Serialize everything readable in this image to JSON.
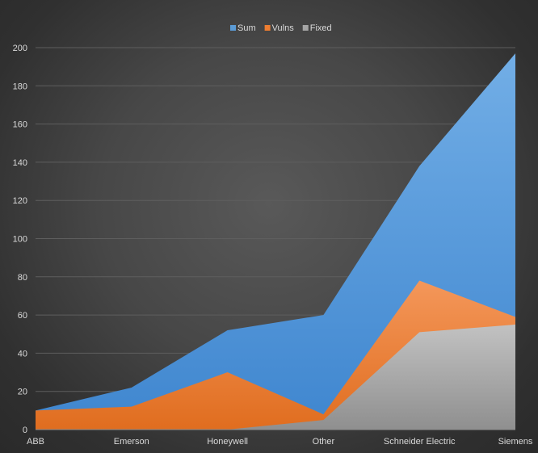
{
  "chart_data": {
    "type": "area",
    "categories": [
      "ABB",
      "Emerson",
      "Honeywell",
      "Other",
      "Schneider Electric",
      "Siemens"
    ],
    "series": [
      {
        "name": "Sum",
        "values": [
          10,
          22,
          52,
          60,
          138,
          197
        ],
        "color": "#5b9bd5"
      },
      {
        "name": "Vulns",
        "values": [
          10,
          12,
          30,
          8,
          78,
          59
        ],
        "color": "#ed7d31"
      },
      {
        "name": "Fixed",
        "values": [
          0,
          0,
          0,
          5,
          51,
          55
        ],
        "color": "#a5a5a5"
      }
    ],
    "ylim": [
      0,
      200
    ],
    "yticks": [
      0,
      20,
      40,
      60,
      80,
      100,
      120,
      140,
      160,
      180,
      200
    ],
    "ytick_labels": [
      "0",
      "20",
      "40",
      "60",
      "80",
      "100",
      "120",
      "140",
      "160",
      "180",
      "200"
    ],
    "grid": true,
    "legend_position": "top-center",
    "background": "#404040"
  }
}
